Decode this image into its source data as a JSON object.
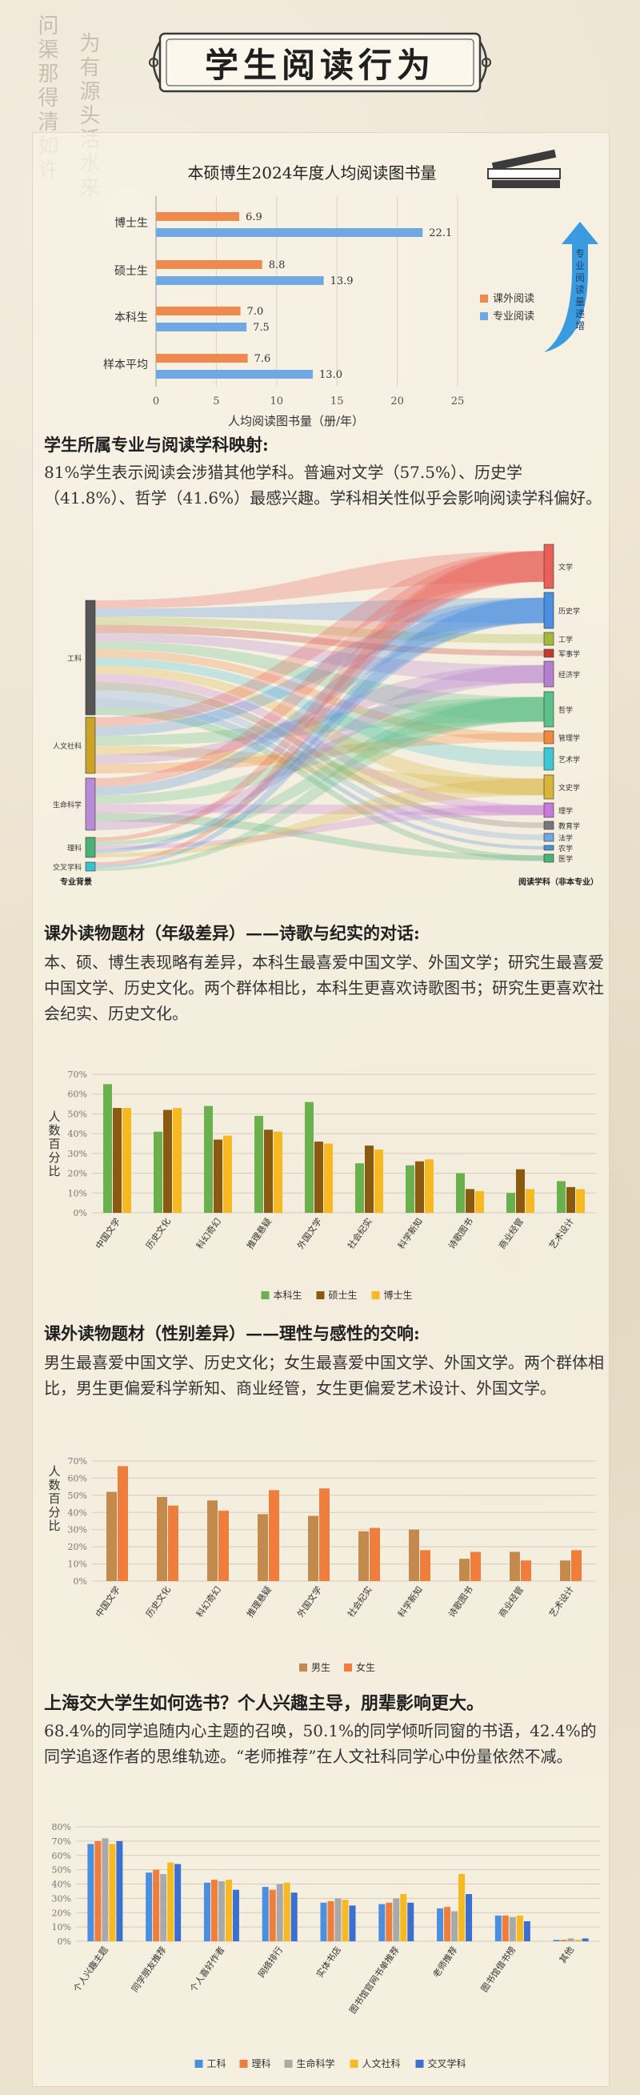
{
  "calligraphy": {
    "left": "问渠那得清如许",
    "right": "为有源头活水来"
  },
  "page_title": "学生阅读行为",
  "section1": {
    "heading": "学生所属专业与阅读学科映射",
    "colon": ":",
    "body": "81%学生表示阅读会涉猎其他学科。普遍对文学（57.5%）、历史学（41.8%）、哲学（41.6%）最感兴趣。学科相关性似乎会影响阅读学科偏好。"
  },
  "section2": {
    "heading": "课外读物题材（年级差异）——诗歌与纪实的对话",
    "colon": ":",
    "body": "本、硕、博生表现略有差异，本科生最喜爱中国文学、外国文学；研究生最喜爱中国文学、历史文化。两个群体相比，本科生更喜欢诗歌图书；研究生更喜欢社会纪实、历史文化。"
  },
  "section3": {
    "heading": "课外读物题材（性别差异）——理性与感性的交响",
    "colon": ":",
    "body": "男生最喜爱中国文学、历史文化；女生最喜爱中国文学、外国文学。两个群体相比，男生更偏爱科学新知、商业经管，女生更偏爱艺术设计、外国文学。"
  },
  "section4": {
    "heading": "上海交大学生如何选书？个人兴趣主导，朋辈影响更大。",
    "body": "68.4%的同学追随内心主题的召唤，50.1%的同学倾听同窗的书语，42.4%的同学追逐作者的思维轨迹。“老师推荐”在人文社科同学心中份量依然不减。"
  },
  "annotations": {
    "arrow_label": "专业阅读量递增"
  },
  "chart_data": [
    {
      "type": "bar",
      "orientation": "horizontal",
      "title": "本硕博生2024年度人均阅读图书量",
      "xlabel": "人均阅读图书量（册/年）",
      "xlim": [
        0,
        25
      ],
      "xticks": [
        "0",
        "5",
        "10",
        "15",
        "20",
        "25"
      ],
      "categories": [
        "博士生",
        "硕士生",
        "本科生",
        "样本平均"
      ],
      "series": [
        {
          "name": "课外阅读",
          "color": "#ee8a4f",
          "values": [
            6.9,
            8.8,
            7.0,
            7.6
          ],
          "labels": [
            "6.9",
            "8.8",
            "7.0",
            "7.6"
          ]
        },
        {
          "name": "专业阅读",
          "color": "#6fa8e4",
          "values": [
            22.1,
            13.9,
            7.5,
            13.0
          ],
          "labels": [
            "22.1",
            "13.9",
            "7.5",
            "13.0"
          ]
        }
      ],
      "legend": "right"
    },
    {
      "type": "sankey",
      "left_title": "专业背景",
      "right_title": "阅读学科（非本专业）",
      "sources": [
        {
          "name": "工科",
          "color": "#555555"
        },
        {
          "name": "人文社科",
          "color": "#c9a227"
        },
        {
          "name": "生命科学",
          "color": "#b98ad6"
        },
        {
          "name": "理科",
          "color": "#4db07a"
        },
        {
          "name": "交叉学科",
          "color": "#39c2c9"
        }
      ],
      "targets": [
        {
          "name": "文学",
          "color": "#e8605a"
        },
        {
          "name": "历史学",
          "color": "#4a8fe0"
        },
        {
          "name": "工学",
          "color": "#a4b83a"
        },
        {
          "name": "军事学",
          "color": "#c0392b"
        },
        {
          "name": "经济学",
          "color": "#b57fd0"
        },
        {
          "name": "哲学",
          "color": "#5cc08a"
        },
        {
          "name": "管理学",
          "color": "#f08a3c"
        },
        {
          "name": "艺术学",
          "color": "#3fc6d4"
        },
        {
          "name": "文史学",
          "color": "#d9b43a"
        },
        {
          "name": "理学",
          "color": "#c77ad8"
        },
        {
          "name": "教育学",
          "color": "#777777"
        },
        {
          "name": "法学",
          "color": "#6fa8e4"
        },
        {
          "name": "农学",
          "color": "#4a8fe0"
        },
        {
          "name": "医学",
          "color": "#4db07a"
        }
      ]
    },
    {
      "type": "bar",
      "ylabel": "人数百分比",
      "ylim": [
        0,
        70
      ],
      "yticks": [
        "0%",
        "10%",
        "20%",
        "30%",
        "40%",
        "50%",
        "60%",
        "70%"
      ],
      "categories": [
        "中国文学",
        "历史文化",
        "科幻奇幻",
        "推理悬疑",
        "外国文学",
        "社会纪实",
        "科学新知",
        "诗歌图书",
        "商业经管",
        "艺术设计"
      ],
      "series": [
        {
          "name": "本科生",
          "color": "#6ab04c",
          "values": [
            65,
            41,
            54,
            49,
            56,
            25,
            24,
            20,
            10,
            16
          ]
        },
        {
          "name": "硕士生",
          "color": "#8a5a10",
          "values": [
            53,
            52,
            37,
            42,
            36,
            34,
            26,
            12,
            22,
            13
          ]
        },
        {
          "name": "博士生",
          "color": "#f6b921",
          "values": [
            53,
            53,
            39,
            41,
            35,
            32,
            27,
            11,
            12,
            12
          ]
        }
      ],
      "legend": "bottom"
    },
    {
      "type": "bar",
      "ylabel": "人数百分比",
      "ylim": [
        0,
        70
      ],
      "yticks": [
        "0%",
        "10%",
        "20%",
        "30%",
        "40%",
        "50%",
        "60%",
        "70%"
      ],
      "categories": [
        "中国文学",
        "历史文化",
        "科幻奇幻",
        "推理悬疑",
        "外国文学",
        "社会纪实",
        "科学新知",
        "诗歌图书",
        "商业经管",
        "艺术设计"
      ],
      "series": [
        {
          "name": "男生",
          "color": "#c38a4e",
          "values": [
            52,
            49,
            47,
            39,
            38,
            29,
            30,
            13,
            17,
            12
          ]
        },
        {
          "name": "女生",
          "color": "#ef7d3c",
          "values": [
            67,
            44,
            41,
            53,
            54,
            31,
            18,
            17,
            12,
            18
          ]
        }
      ],
      "legend": "bottom"
    },
    {
      "type": "bar",
      "ylim": [
        0,
        80
      ],
      "yticks": [
        "0%",
        "10%",
        "20%",
        "30%",
        "40%",
        "50%",
        "60%",
        "70%",
        "80%"
      ],
      "categories": [
        "个人兴趣主题",
        "同学朋友推荐",
        "个人喜好作者",
        "网络排行",
        "实体书店",
        "图书馆官网书单推荐",
        "老师推荐",
        "图书馆借书榜",
        "其他"
      ],
      "series": [
        {
          "name": "工科",
          "color": "#4a8fe0",
          "values": [
            68,
            48,
            41,
            38,
            27,
            26,
            23,
            18,
            1
          ]
        },
        {
          "name": "理科",
          "color": "#ef7d3c",
          "values": [
            70,
            50,
            43,
            36,
            28,
            27,
            24,
            18,
            1
          ]
        },
        {
          "name": "生命科学",
          "color": "#a9a9a9",
          "values": [
            72,
            47,
            42,
            40,
            30,
            30,
            21,
            17,
            2
          ]
        },
        {
          "name": "人文社科",
          "color": "#f6b921",
          "values": [
            68,
            55,
            43,
            41,
            29,
            33,
            47,
            18,
            1
          ]
        },
        {
          "name": "交叉学科",
          "color": "#3b6fd0",
          "values": [
            70,
            54,
            36,
            34,
            25,
            27,
            33,
            14,
            2
          ]
        }
      ],
      "legend": "bottom"
    }
  ]
}
